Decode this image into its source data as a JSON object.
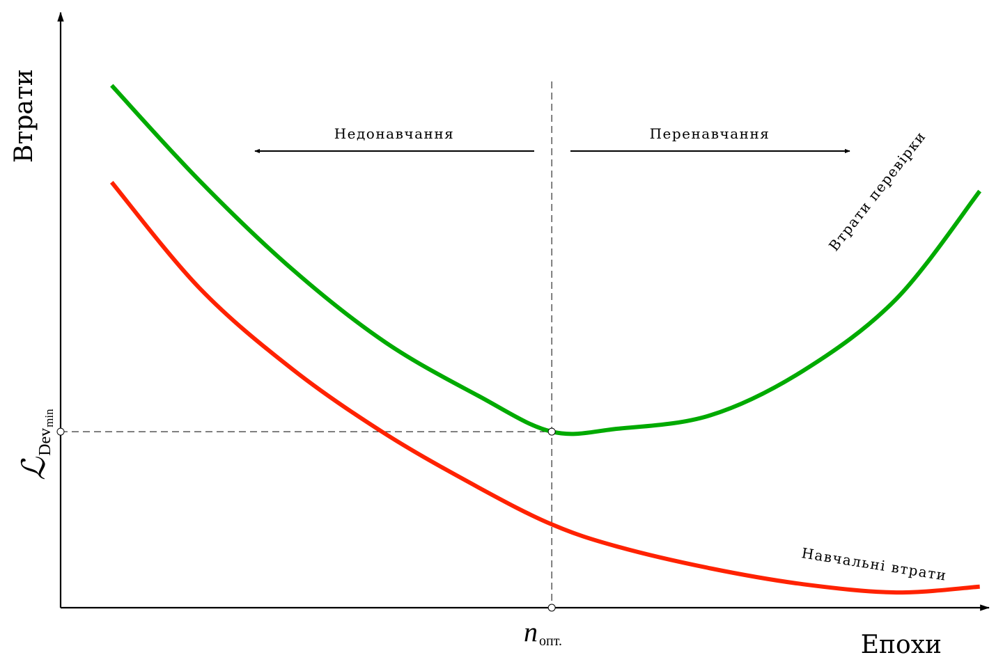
{
  "chart_data": {
    "type": "line",
    "xlabel": "Епохи",
    "ylabel": "Втрати",
    "grid": false,
    "legend": "none",
    "xlim": [
      0,
      10
    ],
    "ylim": [
      0,
      10
    ],
    "series": [
      {
        "name": "Втрати перевірки",
        "color": "#00aa00",
        "x": [
          0.55,
          1.5,
          2.5,
          3.5,
          4.5,
          5.29,
          6.0,
          7.0,
          8.0,
          9.0,
          9.9
        ],
        "y": [
          8.9,
          7.27,
          5.76,
          4.52,
          3.61,
          3.0,
          3.05,
          3.28,
          4.04,
          5.26,
          7.1
        ]
      },
      {
        "name": "Навчальні втрати",
        "color": "#ff2200",
        "x": [
          0.55,
          1.5,
          2.5,
          3.5,
          4.5,
          5.29,
          6.0,
          7.0,
          8.0,
          9.0,
          9.9
        ],
        "y": [
          7.25,
          5.44,
          4.06,
          2.96,
          2.05,
          1.42,
          1.04,
          0.67,
          0.4,
          0.26,
          0.36
        ]
      }
    ],
    "annotations": {
      "optimal_x": 5.29,
      "optimal_x_label": "n",
      "optimal_x_label_sub": "опт.",
      "min_dev_y": 3.0,
      "min_dev_label": "ℒ",
      "min_dev_label_sub": "Dev",
      "min_dev_label_subsub": "min",
      "left_region_label": "Недонавчання",
      "right_region_label": "Перенавчання"
    }
  }
}
